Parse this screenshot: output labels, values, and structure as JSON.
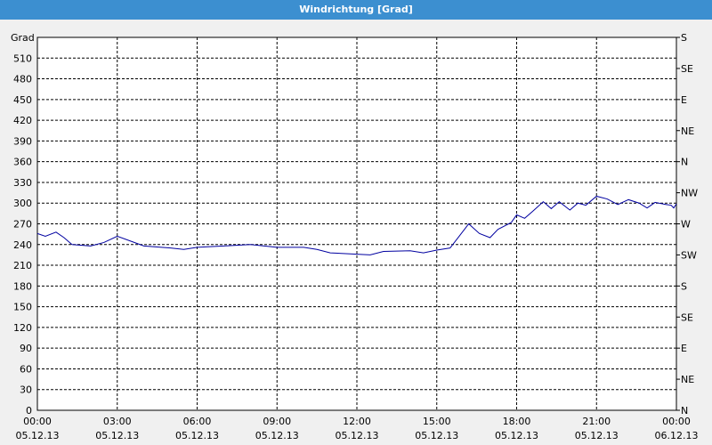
{
  "chart_data": {
    "type": "line",
    "title": "Windrichtung [Grad]",
    "y_label": "Grad",
    "x": [
      0,
      0.3,
      0.7,
      1.0,
      1.3,
      2.0,
      2.5,
      3.0,
      3.5,
      4.0,
      5.0,
      5.5,
      6.0,
      7.0,
      8.0,
      9.0,
      10.0,
      10.5,
      11.0,
      12.0,
      12.5,
      13.0,
      14.0,
      14.5,
      15.0,
      15.5,
      15.8,
      16.2,
      16.6,
      17.0,
      17.3,
      17.8,
      18.0,
      18.3,
      18.6,
      19.0,
      19.3,
      19.6,
      20.0,
      20.3,
      20.6,
      21.0,
      21.4,
      21.8,
      22.2,
      22.6,
      22.9,
      23.2,
      23.6,
      23.8,
      23.9,
      24.0
    ],
    "series": [
      {
        "name": "Windrichtung",
        "color": "#0000a0",
        "values": [
          256,
          252,
          258,
          250,
          240,
          238,
          243,
          252,
          245,
          238,
          235,
          233,
          236,
          238,
          240,
          236,
          236,
          233,
          228,
          226,
          225,
          230,
          231,
          228,
          232,
          235,
          250,
          270,
          256,
          250,
          262,
          272,
          283,
          278,
          288,
          302,
          292,
          302,
          290,
          300,
          297,
          310,
          306,
          298,
          305,
          300,
          293,
          301,
          298,
          297,
          293,
          299
        ]
      }
    ],
    "xlim": [
      0,
      24
    ],
    "xticks": [
      {
        "value": 0,
        "label": "00:00"
      },
      {
        "value": 3,
        "label": "03:00"
      },
      {
        "value": 6,
        "label": "06:00"
      },
      {
        "value": 9,
        "label": "09:00"
      },
      {
        "value": 12,
        "label": "12:00"
      },
      {
        "value": 15,
        "label": "15:00"
      },
      {
        "value": 18,
        "label": "18:00"
      },
      {
        "value": 21,
        "label": "21:00"
      },
      {
        "value": 24,
        "label": "00:00"
      }
    ],
    "xtick_dates": [
      "05.12.13",
      "05.12.13",
      "05.12.13",
      "05.12.13",
      "05.12.13",
      "05.12.13",
      "05.12.13",
      "05.12.13",
      "06.12.13"
    ],
    "ylim": [
      0,
      540
    ],
    "yticks": [
      0,
      30,
      60,
      90,
      120,
      150,
      180,
      210,
      240,
      270,
      300,
      330,
      360,
      390,
      420,
      450,
      480,
      510
    ],
    "y2lim": [
      0,
      540
    ],
    "y2ticks": [
      {
        "value": 0,
        "label": "N"
      },
      {
        "value": 45,
        "label": "NE"
      },
      {
        "value": 90,
        "label": "E"
      },
      {
        "value": 135,
        "label": "SE"
      },
      {
        "value": 180,
        "label": "S"
      },
      {
        "value": 225,
        "label": "SW"
      },
      {
        "value": 270,
        "label": "W"
      },
      {
        "value": 315,
        "label": "NW"
      },
      {
        "value": 360,
        "label": "N"
      },
      {
        "value": 405,
        "label": "NE"
      },
      {
        "value": 450,
        "label": "E"
      },
      {
        "value": 495,
        "label": "SE"
      },
      {
        "value": 540,
        "label": "S"
      }
    ],
    "grid": true
  }
}
